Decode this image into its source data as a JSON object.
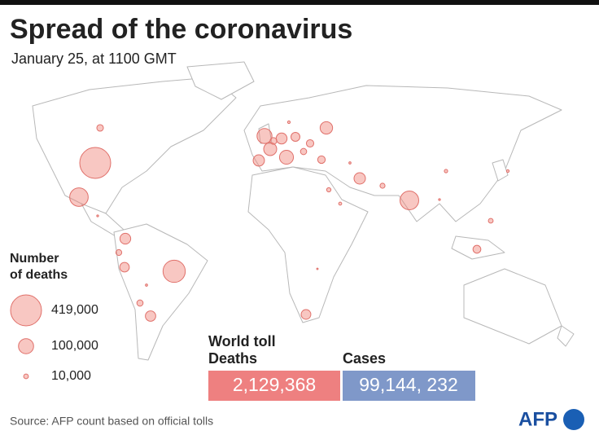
{
  "header": {
    "title": "Spread of the coronavirus",
    "subtitle": "January 25, at 1100 GMT"
  },
  "map": {
    "bubbles": [
      419000,
      217000,
      150000,
      153000,
      98000,
      85000,
      74000,
      68000,
      56000,
      57000,
      52000,
      51000,
      47000,
      41000,
      40000,
      35000,
      27000,
      25000,
      24000,
      20000,
      19000,
      17000,
      15000,
      17000,
      10000,
      11000,
      8000,
      5000,
      4000,
      3000,
      3000,
      2000,
      2000,
      1500,
      1500,
      1000
    ]
  },
  "legend": {
    "title": [
      "Number",
      "of deaths"
    ],
    "sizes": [
      {
        "value": 419000,
        "label": "419,000"
      },
      {
        "value": 100000,
        "label": "100,000"
      },
      {
        "value": 10000,
        "label": "10,000"
      }
    ]
  },
  "world_toll": {
    "title": "World toll",
    "deaths": {
      "label": "Deaths",
      "value": "2,129,368"
    },
    "cases": {
      "label": "Cases",
      "value": "99,144, 232"
    }
  },
  "footer": {
    "source": "Source: AFP count based on official tolls",
    "logo": "AFP"
  }
}
